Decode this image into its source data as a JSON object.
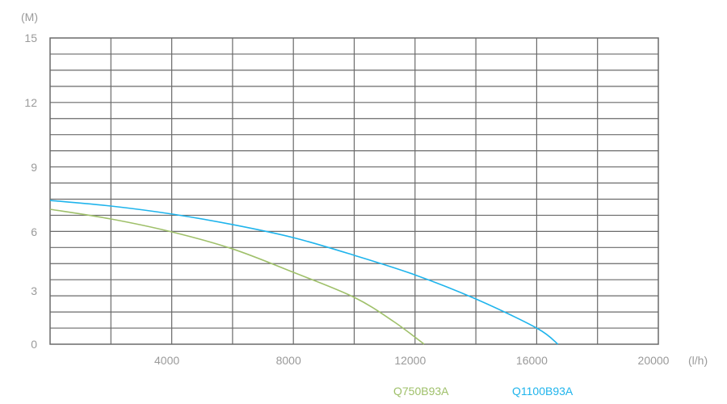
{
  "chart_data": {
    "type": "line",
    "title": "",
    "xlabel": "(l/h)",
    "ylabel": "(M)",
    "xlim": [
      0,
      20000
    ],
    "ylim": [
      0,
      15
    ],
    "x_ticks": [
      "4000",
      "8000",
      "12000",
      "16000",
      "20000"
    ],
    "y_ticks": [
      "15",
      "12",
      "9",
      "6",
      "3",
      "0"
    ],
    "grid": true,
    "legend_position": "bottom",
    "series": [
      {
        "name": "Q750B93A",
        "color": "#9fc06a",
        "x": [
          0,
          2000,
          4000,
          6000,
          8000,
          10000,
          11300,
          12300
        ],
        "y": [
          7.05,
          6.6,
          6.0,
          5.2,
          4.1,
          2.9,
          1.4,
          0
        ]
      },
      {
        "name": "Q1100B93A",
        "color": "#1fb4ec",
        "x": [
          0,
          2000,
          4000,
          6000,
          8000,
          10000,
          12000,
          14000,
          16000,
          16700
        ],
        "y": [
          7.46,
          7.2,
          6.83,
          6.34,
          5.73,
          4.9,
          3.98,
          2.8,
          1.0,
          0
        ]
      }
    ]
  }
}
